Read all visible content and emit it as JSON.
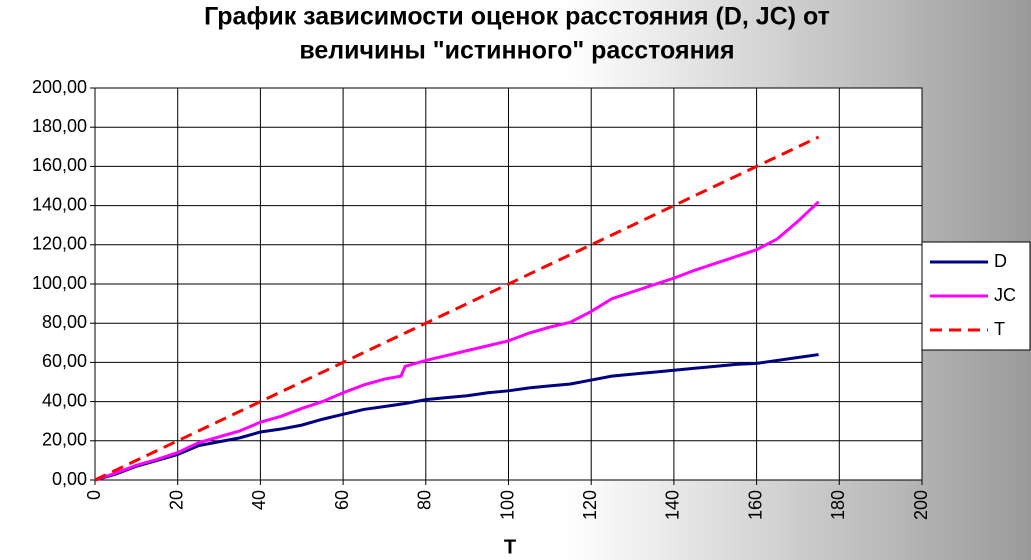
{
  "chart_data": {
    "type": "line",
    "title": [
      "График зависимости оценок расстояния (D, JC) от",
      "величины \"истинного\" расстояния"
    ],
    "x_label": "T",
    "x": [
      0,
      5,
      10,
      15,
      20,
      25,
      30,
      35,
      40,
      45,
      50,
      55,
      60,
      65,
      70,
      74,
      75,
      80,
      85,
      90,
      95,
      100,
      105,
      110,
      115,
      120,
      125,
      130,
      135,
      140,
      145,
      150,
      155,
      160,
      165,
      170,
      175
    ],
    "series": [
      {
        "name": "D",
        "color": "#000080",
        "dashed": false,
        "values": [
          0,
          3,
          7,
          10,
          13,
          17.5,
          19.5,
          21.5,
          24.5,
          26,
          28,
          31,
          33.5,
          36,
          37.5,
          38.7,
          39,
          41,
          42,
          43,
          44.5,
          45.5,
          47,
          48,
          49,
          51,
          53,
          54,
          55,
          56,
          57,
          58,
          59,
          59.5,
          61,
          62.5,
          64
        ]
      },
      {
        "name": "JC",
        "color": "#ff00ff",
        "dashed": false,
        "values": [
          0,
          3.5,
          7.5,
          10.5,
          14,
          19,
          22,
          25,
          29.5,
          32.5,
          36.5,
          40,
          44.5,
          48.5,
          51.5,
          53,
          58,
          61,
          63.5,
          66,
          68.5,
          71,
          75,
          78,
          80.5,
          86,
          92.5,
          96,
          99.5,
          103,
          107,
          110.5,
          114,
          117.5,
          123,
          132,
          142
        ]
      },
      {
        "name": "T",
        "color": "#ff0000",
        "dashed": true,
        "values": [
          0,
          5,
          10,
          15,
          20,
          25,
          30,
          35,
          40,
          45,
          50,
          55,
          60,
          65,
          70,
          74,
          75,
          80,
          85,
          90,
          95,
          100,
          105,
          110,
          115,
          120,
          125,
          130,
          135,
          140,
          145,
          150,
          155,
          160,
          165,
          170,
          175
        ]
      }
    ],
    "xlim": [
      0,
      200
    ],
    "xticks": [
      0,
      20,
      40,
      60,
      80,
      100,
      120,
      140,
      160,
      180,
      200
    ],
    "ylim": [
      0,
      200
    ],
    "yticks": [
      {
        "value": 0,
        "label": "0,00"
      },
      {
        "value": 20,
        "label": "20,00"
      },
      {
        "value": 40,
        "label": "40,00"
      },
      {
        "value": 60,
        "label": "60,00"
      },
      {
        "value": 80,
        "label": "80,00"
      },
      {
        "value": 100,
        "label": "100,00"
      },
      {
        "value": 120,
        "label": "120,00"
      },
      {
        "value": 140,
        "label": "140,00"
      },
      {
        "value": 160,
        "label": "160,00"
      },
      {
        "value": 180,
        "label": "180,00"
      },
      {
        "value": 200,
        "label": "200,00"
      }
    ],
    "grid": true,
    "legend": "right"
  }
}
